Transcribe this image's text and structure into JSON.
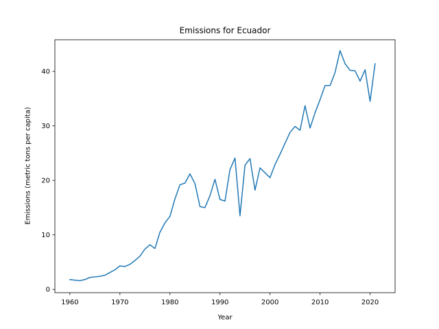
{
  "chart_data": {
    "type": "line",
    "title": "Emissions for Ecuador",
    "xlabel": "Year",
    "ylabel": "Emissions (metric tons per capita)",
    "xlim": [
      1957,
      2025
    ],
    "ylim": [
      -0.6,
      45.8
    ],
    "xticks": [
      1960,
      1970,
      1980,
      1990,
      2000,
      2010,
      2020
    ],
    "yticks": [
      0,
      10,
      20,
      30,
      40
    ],
    "grid": false,
    "series": [
      {
        "color": "#1f77b4",
        "x": [
          1960,
          1961,
          1962,
          1963,
          1964,
          1965,
          1966,
          1967,
          1968,
          1969,
          1970,
          1971,
          1972,
          1973,
          1974,
          1975,
          1976,
          1977,
          1978,
          1979,
          1980,
          1981,
          1982,
          1983,
          1984,
          1985,
          1986,
          1987,
          1988,
          1989,
          1990,
          1991,
          1992,
          1993,
          1994,
          1995,
          1996,
          1997,
          1998,
          1999,
          2000,
          2001,
          2002,
          2003,
          2004,
          2005,
          2006,
          2007,
          2008,
          2009,
          2010,
          2011,
          2012,
          2013,
          2014,
          2015,
          2016,
          2017,
          2018,
          2019,
          2020,
          2021
        ],
        "y": [
          1.8,
          1.7,
          1.6,
          1.8,
          2.2,
          2.3,
          2.4,
          2.6,
          3.1,
          3.6,
          4.3,
          4.2,
          4.6,
          5.3,
          6.1,
          7.4,
          8.2,
          7.5,
          10.5,
          12.2,
          13.4,
          16.6,
          19.2,
          19.5,
          21.2,
          19.4,
          15.2,
          15.0,
          17.2,
          20.2,
          16.5,
          16.2,
          22.0,
          24.1,
          13.5,
          22.8,
          24.0,
          18.2,
          22.3,
          21.4,
          20.5,
          22.9,
          24.8,
          26.8,
          28.8,
          29.9,
          29.2,
          33.7,
          29.6,
          32.4,
          34.8,
          37.4,
          37.4,
          39.8,
          43.8,
          41.4,
          40.2,
          40.1,
          38.2,
          40.3,
          34.5,
          41.4
        ]
      }
    ]
  }
}
